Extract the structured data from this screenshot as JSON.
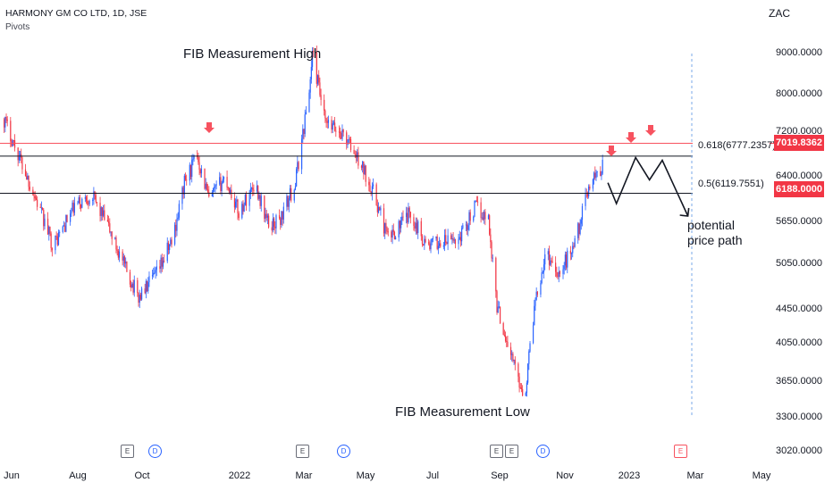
{
  "header": {
    "symbol_title": "HARMONY GM CO LTD, 1D, JSE",
    "indicator": "Pivots",
    "currency": "ZAC"
  },
  "chart_data": {
    "type": "candlestick",
    "title": "HARMONY GM CO LTD, 1D, JSE",
    "y_scale": "log",
    "ylim": [
      3020,
      9000
    ],
    "y_ticks": [
      "9000.0000",
      "8000.0000",
      "7200.0000",
      "6400.0000",
      "5650.0000",
      "5050.0000",
      "4450.0000",
      "4050.0000",
      "3650.0000",
      "3300.0000",
      "3020.0000"
    ],
    "x_ticks": [
      "Jun",
      "Aug",
      "Oct",
      "2022",
      "Mar",
      "May",
      "Jul",
      "Sep",
      "Nov",
      "2023",
      "Mar",
      "May"
    ],
    "colors": {
      "up": "#2962ff",
      "down": "#f23645",
      "fib_line": "#f7525f",
      "level_line": "#131722"
    },
    "price_path": [
      [
        "2021-05-25",
        7500
      ],
      [
        "2021-06-20",
        6200
      ],
      [
        "2021-07-10",
        5300
      ],
      [
        "2021-07-30",
        5900
      ],
      [
        "2021-08-15",
        6100
      ],
      [
        "2021-08-30",
        5600
      ],
      [
        "2021-09-15",
        5000
      ],
      [
        "2021-09-28",
        4600
      ],
      [
        "2021-10-15",
        4900
      ],
      [
        "2021-10-30",
        5400
      ],
      [
        "2021-11-10",
        6300
      ],
      [
        "2021-11-22",
        6800
      ],
      [
        "2021-12-03",
        6000
      ],
      [
        "2021-12-18",
        6400
      ],
      [
        "2021-12-31",
        5800
      ],
      [
        "2022-01-15",
        6300
      ],
      [
        "2022-01-28",
        5600
      ],
      [
        "2022-02-08",
        5700
      ],
      [
        "2022-02-22",
        6300
      ],
      [
        "2022-03-07",
        8100
      ],
      [
        "2022-03-10",
        9000
      ],
      [
        "2022-03-22",
        7400
      ],
      [
        "2022-04-08",
        7200
      ],
      [
        "2022-04-25",
        6600
      ],
      [
        "2022-05-05",
        6200
      ],
      [
        "2022-05-20",
        5400
      ],
      [
        "2022-06-10",
        5800
      ],
      [
        "2022-06-25",
        5300
      ],
      [
        "2022-07-10",
        5350
      ],
      [
        "2022-07-25",
        5400
      ],
      [
        "2022-08-10",
        5900
      ],
      [
        "2022-08-22",
        5700
      ],
      [
        "2022-08-30",
        4500
      ],
      [
        "2022-09-10",
        4000
      ],
      [
        "2022-09-25",
        3500
      ],
      [
        "2022-10-05",
        4600
      ],
      [
        "2022-10-15",
        5200
      ],
      [
        "2022-10-28",
        4900
      ],
      [
        "2022-11-12",
        5400
      ],
      [
        "2022-11-25",
        6300
      ],
      [
        "2022-12-07",
        6600
      ]
    ],
    "fib_levels": [
      {
        "label": "0.618(6777.2357)",
        "value": 6777.2357
      },
      {
        "label": "0.5(6119.7551)",
        "value": 6119.7551
      }
    ],
    "price_tags": [
      {
        "text": "7019.8362",
        "value": 7019.8362
      },
      {
        "text": "6188.0000",
        "value": 6188.0
      }
    ],
    "annotations": {
      "fib_high": "FIB Measurement High",
      "fib_low": "FIB Measurement Low",
      "potential_path": "potential price path"
    },
    "projection": [
      [
        "2022-12-12",
        6300
      ],
      [
        "2022-12-20",
        5950
      ],
      [
        "2023-01-07",
        6750
      ],
      [
        "2023-01-20",
        6350
      ],
      [
        "2023-02-01",
        6700
      ],
      [
        "2023-02-25",
        5750
      ]
    ],
    "events": [
      "E",
      "D",
      "E",
      "D",
      "E",
      "E",
      "D",
      "E"
    ]
  }
}
